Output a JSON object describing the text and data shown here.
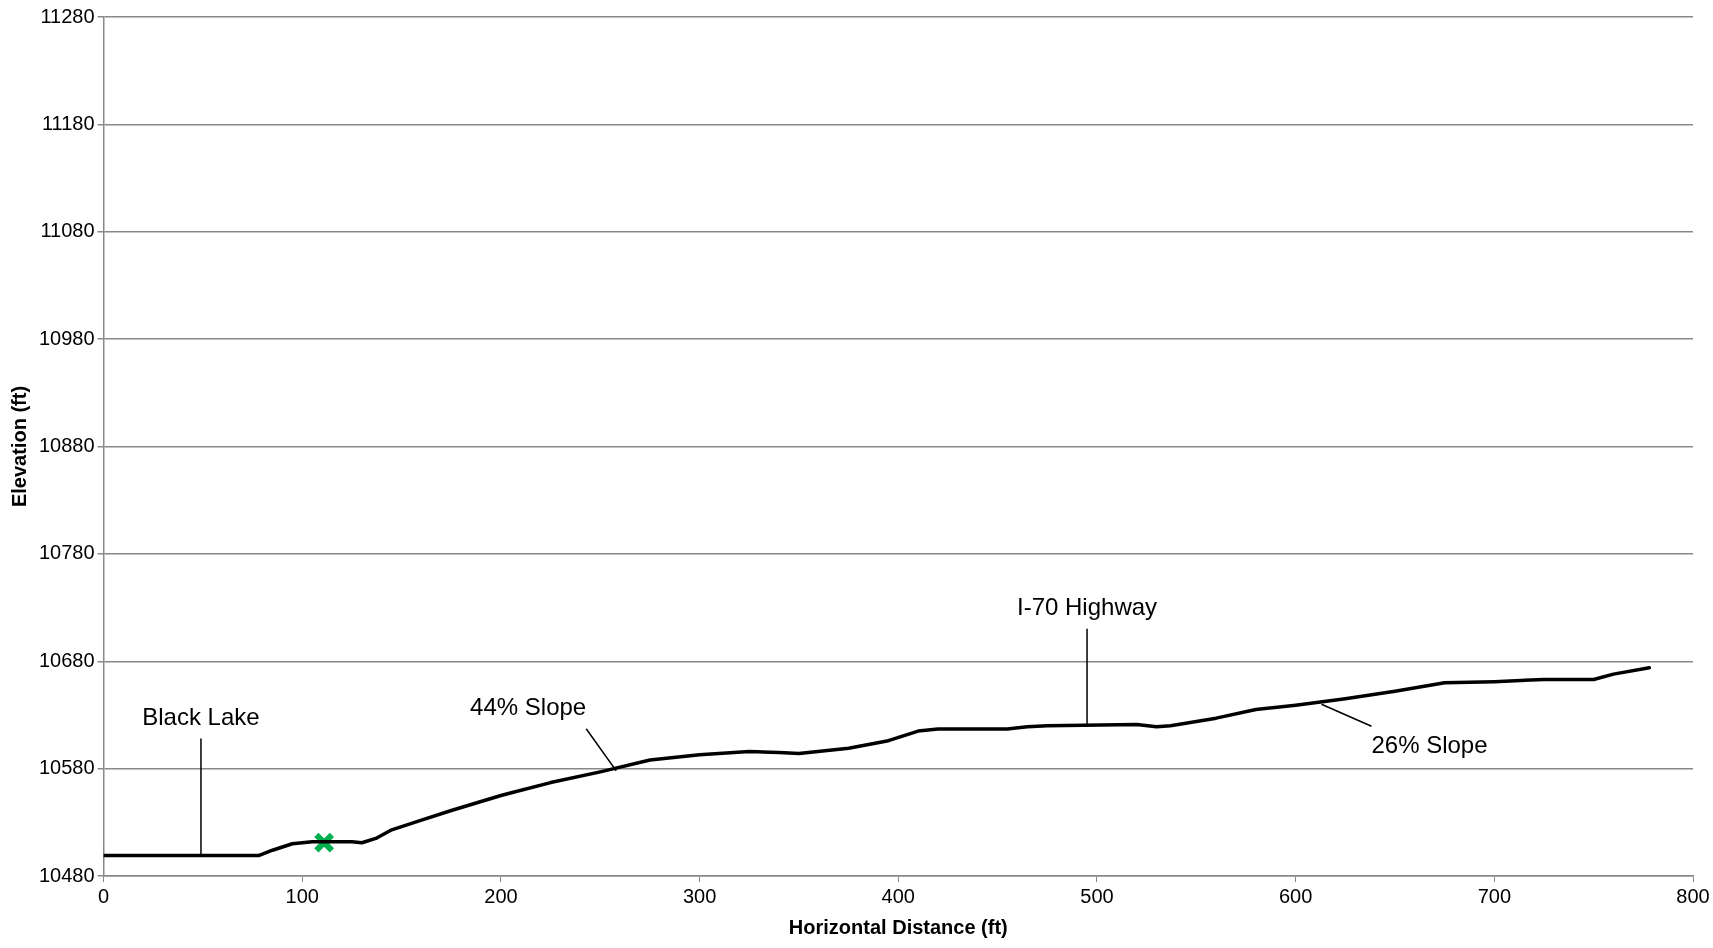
{
  "chart_data": {
    "type": "line",
    "xlabel": "Horizontal Distance (ft)",
    "ylabel": "Elevation (ft)",
    "xlim": [
      0,
      800
    ],
    "xticks": [
      0,
      100,
      200,
      300,
      400,
      500,
      600,
      700,
      800
    ],
    "ylim": [
      10480,
      11280
    ],
    "yticks": [
      10480,
      10580,
      10680,
      10780,
      10880,
      10980,
      11080,
      11180,
      11280
    ],
    "grid": "y",
    "legend": false,
    "marker": "none",
    "line_style": "solid",
    "series": [
      {
        "color": "#000000",
        "x": [
          0,
          78,
          85,
          95,
          105,
          125,
          130,
          137,
          145,
          160,
          175,
          200,
          225,
          250,
          275,
          300,
          325,
          340,
          350,
          375,
          395,
          410,
          420,
          455,
          465,
          475,
          520,
          530,
          537,
          560,
          580,
          600,
          625,
          650,
          675,
          700,
          725,
          750,
          760,
          778
        ],
        "values": [
          10499,
          10499,
          10504,
          10510,
          10512,
          10512,
          10511,
          10515,
          10523,
          10532,
          10541,
          10555,
          10567,
          10577,
          10588,
          10593,
          10596,
          10595,
          10594,
          10599,
          10606,
          10615,
          10617,
          10617,
          10619,
          10620,
          10621,
          10619,
          10620,
          10627,
          10635,
          10639,
          10645,
          10652,
          10660,
          10661,
          10663,
          10663,
          10668,
          10674
        ]
      },
      {
        "type": "scatter",
        "color": "#00b050",
        "marker": "cross",
        "x": [
          111
        ],
        "values": [
          10511
        ]
      }
    ],
    "annotations": [
      {
        "text": "Black Lake",
        "x": 49,
        "y": 10499
      },
      {
        "text": "44% Slope",
        "x": 258,
        "y": 10578
      },
      {
        "text": "I-70 Highway",
        "x": 495,
        "y": 10620
      },
      {
        "text": "26% Slope",
        "x": 613,
        "y": 10640
      }
    ]
  }
}
